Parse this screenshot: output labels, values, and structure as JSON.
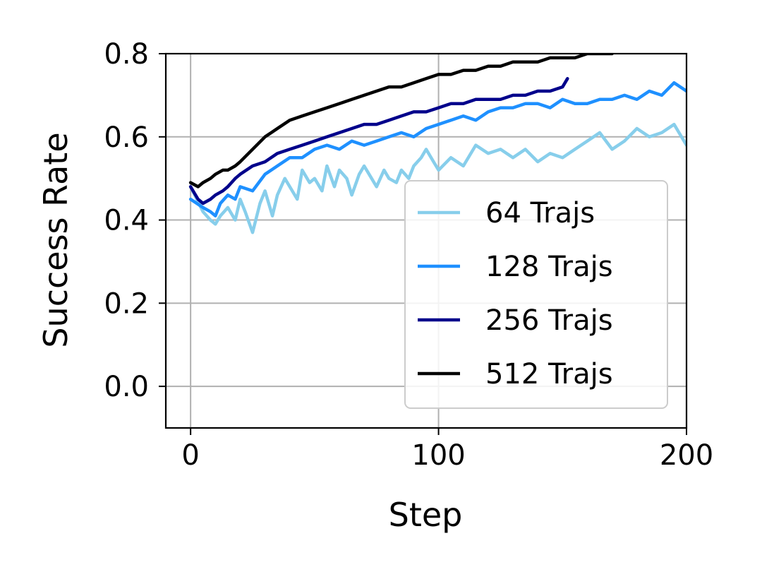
{
  "chart_data": {
    "type": "line",
    "title": "",
    "xlabel": "Step",
    "ylabel": "Success Rate",
    "xlim": [
      -10,
      200
    ],
    "ylim": [
      -0.1,
      0.8
    ],
    "xticks": [
      0,
      100,
      200
    ],
    "xtick_labels": [
      "0",
      "100",
      "200"
    ],
    "yticks": [
      0.0,
      0.2,
      0.4,
      0.6,
      0.8
    ],
    "ytick_labels": [
      "0.0",
      "0.2",
      "0.4",
      "0.6",
      "0.8"
    ],
    "grid": true,
    "legend_position": "lower-right",
    "series": [
      {
        "name": "64 Trajs",
        "color": "#87ceeb",
        "x": [
          0,
          5,
          8,
          10,
          12,
          15,
          18,
          20,
          22,
          25,
          28,
          30,
          33,
          35,
          38,
          40,
          43,
          45,
          48,
          50,
          53,
          55,
          58,
          60,
          63,
          65,
          68,
          70,
          73,
          75,
          78,
          80,
          83,
          85,
          88,
          90,
          93,
          95,
          98,
          100,
          105,
          110,
          115,
          120,
          125,
          130,
          135,
          140,
          145,
          150,
          155,
          160,
          165,
          170,
          175,
          180,
          185,
          190,
          195,
          200
        ],
        "y": [
          0.48,
          0.42,
          0.4,
          0.39,
          0.41,
          0.43,
          0.4,
          0.45,
          0.42,
          0.37,
          0.44,
          0.47,
          0.41,
          0.46,
          0.5,
          0.48,
          0.45,
          0.52,
          0.49,
          0.5,
          0.47,
          0.53,
          0.48,
          0.52,
          0.5,
          0.46,
          0.51,
          0.53,
          0.5,
          0.48,
          0.52,
          0.5,
          0.49,
          0.52,
          0.5,
          0.53,
          0.55,
          0.57,
          0.54,
          0.52,
          0.55,
          0.53,
          0.58,
          0.56,
          0.57,
          0.55,
          0.57,
          0.54,
          0.56,
          0.55,
          0.57,
          0.59,
          0.61,
          0.57,
          0.59,
          0.62,
          0.6,
          0.61,
          0.63,
          0.58
        ]
      },
      {
        "name": "128 Trajs",
        "color": "#1e90ff",
        "x": [
          0,
          5,
          8,
          10,
          12,
          15,
          18,
          20,
          25,
          30,
          35,
          40,
          45,
          50,
          55,
          60,
          65,
          70,
          75,
          80,
          85,
          90,
          95,
          100,
          105,
          110,
          115,
          120,
          125,
          130,
          135,
          140,
          145,
          150,
          155,
          160,
          165,
          170,
          175,
          180,
          185,
          190,
          195,
          200
        ],
        "y": [
          0.45,
          0.43,
          0.42,
          0.41,
          0.44,
          0.46,
          0.45,
          0.48,
          0.47,
          0.51,
          0.53,
          0.55,
          0.55,
          0.57,
          0.58,
          0.57,
          0.59,
          0.58,
          0.59,
          0.6,
          0.61,
          0.6,
          0.62,
          0.63,
          0.64,
          0.65,
          0.64,
          0.66,
          0.67,
          0.67,
          0.68,
          0.68,
          0.67,
          0.69,
          0.68,
          0.68,
          0.69,
          0.69,
          0.7,
          0.69,
          0.71,
          0.7,
          0.73,
          0.71
        ]
      },
      {
        "name": "256 Trajs",
        "color": "#00008b",
        "x": [
          0,
          3,
          5,
          8,
          10,
          13,
          15,
          18,
          20,
          25,
          30,
          35,
          40,
          45,
          50,
          55,
          60,
          65,
          70,
          75,
          80,
          85,
          90,
          95,
          100,
          105,
          110,
          115,
          120,
          125,
          130,
          135,
          140,
          145,
          150,
          152
        ],
        "y": [
          0.48,
          0.45,
          0.44,
          0.45,
          0.46,
          0.47,
          0.48,
          0.5,
          0.51,
          0.53,
          0.54,
          0.56,
          0.57,
          0.58,
          0.59,
          0.6,
          0.61,
          0.62,
          0.63,
          0.63,
          0.64,
          0.65,
          0.66,
          0.66,
          0.67,
          0.68,
          0.68,
          0.69,
          0.69,
          0.69,
          0.7,
          0.7,
          0.71,
          0.71,
          0.72,
          0.74
        ]
      },
      {
        "name": "512 Trajs",
        "color": "#000000",
        "x": [
          0,
          3,
          5,
          8,
          10,
          13,
          15,
          18,
          20,
          25,
          30,
          35,
          40,
          45,
          50,
          55,
          60,
          65,
          70,
          75,
          80,
          85,
          90,
          95,
          100,
          105,
          110,
          115,
          120,
          125,
          130,
          135,
          140,
          145,
          150,
          155,
          160,
          165,
          170
        ],
        "y": [
          0.49,
          0.48,
          0.49,
          0.5,
          0.51,
          0.52,
          0.52,
          0.53,
          0.54,
          0.57,
          0.6,
          0.62,
          0.64,
          0.65,
          0.66,
          0.67,
          0.68,
          0.69,
          0.7,
          0.71,
          0.72,
          0.72,
          0.73,
          0.74,
          0.75,
          0.75,
          0.76,
          0.76,
          0.77,
          0.77,
          0.78,
          0.78,
          0.78,
          0.79,
          0.79,
          0.79,
          0.8,
          0.8,
          0.8
        ]
      }
    ]
  }
}
